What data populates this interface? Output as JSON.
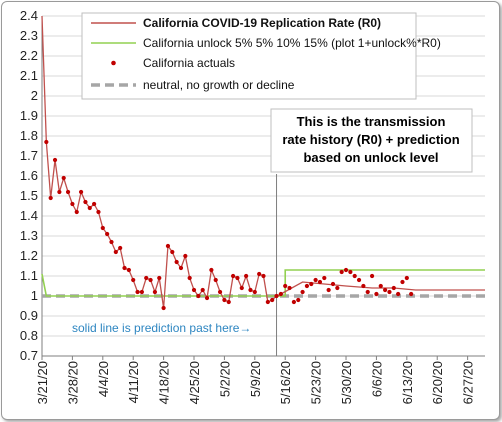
{
  "colors": {
    "r0": "#c0504d",
    "unlock": "#92d050",
    "actuals": "#c00000",
    "neutral": "#a6a6a6",
    "marker": "#7f7f7f",
    "note": "#2e86c1"
  },
  "chart_data": {
    "type": "line",
    "title": "",
    "xlabel": "",
    "ylabel": "",
    "x_range": [
      "2020-03-21",
      "2020-07-01"
    ],
    "ylim": [
      0.7,
      2.4
    ],
    "y_ticks": [
      0.7,
      0.8,
      0.9,
      1,
      1.1,
      1.2,
      1.3,
      1.4,
      1.5,
      1.6,
      1.7,
      1.8,
      1.9,
      2,
      2.1,
      2.2,
      2.3,
      2.4
    ],
    "y_tick_labels": [
      "0.7",
      "0.8",
      "0.9",
      "1",
      "1.1",
      "1.2",
      "1.3",
      "1.4",
      "1.5",
      "1.6",
      "1.7",
      "1.8",
      "1.9",
      "2",
      "2.1",
      "2.2",
      "2.3",
      "2.4"
    ],
    "x_ticks": [
      "2020-03-21",
      "2020-03-28",
      "2020-04-04",
      "2020-04-11",
      "2020-04-18",
      "2020-04-25",
      "2020-05-02",
      "2020-05-09",
      "2020-05-16",
      "2020-05-23",
      "2020-05-30",
      "2020-06-06",
      "2020-06-13",
      "2020-06-20",
      "2020-06-27"
    ],
    "x_tick_labels": [
      "3/21/20",
      "3/28/20",
      "4/4/20",
      "4/11/20",
      "4/18/20",
      "4/25/20",
      "5/2/20",
      "5/9/20",
      "5/16/20",
      "5/23/20",
      "5/30/20",
      "6/6/20",
      "6/13/20",
      "6/20/20",
      "6/27/20"
    ],
    "grid": "horizontal",
    "legend_position": "top",
    "series": [
      {
        "name": "California COVID-19 Replication Rate (R0)",
        "style": "line",
        "x": [
          "2020-03-21",
          "2020-03-22",
          "2020-03-23",
          "2020-03-24",
          "2020-03-25",
          "2020-03-26",
          "2020-03-27",
          "2020-03-28",
          "2020-03-29",
          "2020-03-30",
          "2020-03-31",
          "2020-04-01",
          "2020-04-02",
          "2020-04-03",
          "2020-04-04",
          "2020-04-05",
          "2020-04-06",
          "2020-04-07",
          "2020-04-08",
          "2020-04-09",
          "2020-04-10",
          "2020-04-11",
          "2020-04-12",
          "2020-04-13",
          "2020-04-14",
          "2020-04-15",
          "2020-04-16",
          "2020-04-17",
          "2020-04-18",
          "2020-04-19",
          "2020-04-20",
          "2020-04-21",
          "2020-04-22",
          "2020-04-23",
          "2020-04-24",
          "2020-04-25",
          "2020-04-26",
          "2020-04-27",
          "2020-04-28",
          "2020-04-29",
          "2020-04-30",
          "2020-05-01",
          "2020-05-02",
          "2020-05-03",
          "2020-05-04",
          "2020-05-05",
          "2020-05-06",
          "2020-05-07",
          "2020-05-08",
          "2020-05-09",
          "2020-05-10",
          "2020-05-11",
          "2020-05-12",
          "2020-05-13",
          "2020-05-14",
          "2020-05-15",
          "2020-05-20",
          "2020-05-25",
          "2020-05-30",
          "2020-06-05",
          "2020-06-10",
          "2020-06-15",
          "2020-06-20",
          "2020-06-25",
          "2020-07-01"
        ],
        "y": [
          2.4,
          1.77,
          1.49,
          1.68,
          1.52,
          1.59,
          1.52,
          1.46,
          1.42,
          1.52,
          1.47,
          1.44,
          1.46,
          1.42,
          1.34,
          1.31,
          1.27,
          1.22,
          1.24,
          1.14,
          1.13,
          1.08,
          1.02,
          1.02,
          1.09,
          1.08,
          1.02,
          1.09,
          0.94,
          1.25,
          1.22,
          1.17,
          1.14,
          1.2,
          1.09,
          1.03,
          1.0,
          1.03,
          0.99,
          1.13,
          1.08,
          1.02,
          0.98,
          0.97,
          1.1,
          1.09,
          1.04,
          1.1,
          1.03,
          1.02,
          1.11,
          1.1,
          0.97,
          0.98,
          1.0,
          1.01,
          1.07,
          1.06,
          1.05,
          1.04,
          1.04,
          1.03,
          1.03,
          1.03,
          1.03
        ]
      },
      {
        "name": "California unlock 5% 5% 10% 15% (plot 1+unlock%*R0)",
        "style": "step",
        "x": [
          "2020-03-21",
          "2020-03-22",
          "2020-05-16",
          "2020-05-16",
          "2020-07-01"
        ],
        "y": [
          1.11,
          1.0,
          1.0,
          1.13,
          1.13
        ]
      },
      {
        "name": "California actuals",
        "style": "points",
        "x": [
          "2020-03-22",
          "2020-03-23",
          "2020-03-24",
          "2020-03-25",
          "2020-03-26",
          "2020-03-27",
          "2020-03-28",
          "2020-03-29",
          "2020-03-30",
          "2020-03-31",
          "2020-04-01",
          "2020-04-02",
          "2020-04-03",
          "2020-04-04",
          "2020-04-05",
          "2020-04-06",
          "2020-04-07",
          "2020-04-08",
          "2020-04-09",
          "2020-04-10",
          "2020-04-11",
          "2020-04-12",
          "2020-04-13",
          "2020-04-14",
          "2020-04-15",
          "2020-04-16",
          "2020-04-17",
          "2020-04-18",
          "2020-04-19",
          "2020-04-20",
          "2020-04-21",
          "2020-04-22",
          "2020-04-23",
          "2020-04-24",
          "2020-04-25",
          "2020-04-26",
          "2020-04-27",
          "2020-04-28",
          "2020-04-29",
          "2020-04-30",
          "2020-05-01",
          "2020-05-02",
          "2020-05-03",
          "2020-05-04",
          "2020-05-05",
          "2020-05-06",
          "2020-05-07",
          "2020-05-08",
          "2020-05-09",
          "2020-05-10",
          "2020-05-11",
          "2020-05-12",
          "2020-05-13",
          "2020-05-14",
          "2020-05-15",
          "2020-05-16",
          "2020-05-17",
          "2020-05-18",
          "2020-05-19",
          "2020-05-20",
          "2020-05-21",
          "2020-05-22",
          "2020-05-23",
          "2020-05-24",
          "2020-05-25",
          "2020-05-26",
          "2020-05-27",
          "2020-05-28",
          "2020-05-29",
          "2020-05-30",
          "2020-05-31",
          "2020-06-01",
          "2020-06-02",
          "2020-06-03",
          "2020-06-04",
          "2020-06-05",
          "2020-06-06",
          "2020-06-07",
          "2020-06-08",
          "2020-06-09",
          "2020-06-10",
          "2020-06-11",
          "2020-06-12",
          "2020-06-13",
          "2020-06-14"
        ],
        "y": [
          1.77,
          1.49,
          1.68,
          1.52,
          1.59,
          1.52,
          1.46,
          1.42,
          1.52,
          1.47,
          1.44,
          1.46,
          1.42,
          1.34,
          1.31,
          1.27,
          1.22,
          1.24,
          1.14,
          1.13,
          1.08,
          1.02,
          1.02,
          1.09,
          1.08,
          1.02,
          1.09,
          0.94,
          1.25,
          1.22,
          1.17,
          1.14,
          1.2,
          1.09,
          1.03,
          1.0,
          1.03,
          0.99,
          1.13,
          1.08,
          1.02,
          0.98,
          0.97,
          1.1,
          1.09,
          1.04,
          1.1,
          1.03,
          1.02,
          1.11,
          1.1,
          0.97,
          0.98,
          1.0,
          1.01,
          1.05,
          1.04,
          0.97,
          0.98,
          1.02,
          1.05,
          1.06,
          1.08,
          1.07,
          1.09,
          1.03,
          1.06,
          1.04,
          1.12,
          1.13,
          1.12,
          1.1,
          1.08,
          1.05,
          1.02,
          1.1,
          1.01,
          1.05,
          1.03,
          1.02,
          1.04,
          1.01,
          1.07,
          1.09,
          1.01
        ]
      },
      {
        "name": "neutral, no growth or decline",
        "style": "dashed",
        "x": [
          "2020-03-21",
          "2020-07-01"
        ],
        "y": [
          1.0,
          1.0
        ]
      }
    ],
    "marker_line": {
      "x": "2020-05-14"
    },
    "annotations": {
      "callout": [
        "This is the transmission",
        "rate history (R0) + prediction",
        "based on unlock level"
      ],
      "prediction_note": "solid line is prediction past here→"
    }
  }
}
